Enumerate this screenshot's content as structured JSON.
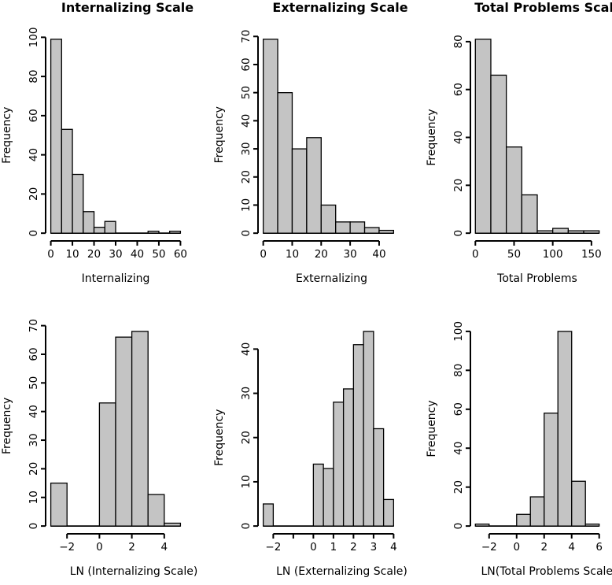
{
  "figure": {
    "kind": "r-base-histogram-grid",
    "rows": 2,
    "cols": 3,
    "background": "#ffffff",
    "bar_fill": "#c4c4c4",
    "bar_stroke": "#000000",
    "axis_color": "#000000",
    "text_color": "#000000",
    "grid": "off",
    "legend": "none"
  },
  "chart_data": [
    {
      "type": "bar",
      "subtype": "histogram",
      "title": "Internalizing Scale",
      "xlabel": "Internalizing",
      "ylabel": "Frequency",
      "bins": {
        "start": 0,
        "width": 5
      },
      "counts": [
        99,
        53,
        30,
        11,
        3,
        6,
        0,
        0,
        0,
        1,
        0,
        1
      ],
      "xlim": [
        0,
        60
      ],
      "ylim": [
        0,
        99
      ],
      "x_ticks": [
        0,
        10,
        20,
        30,
        40,
        50,
        60
      ],
      "x_tick_labels": [
        "0",
        "10",
        "20",
        "30",
        "40",
        "50",
        "60"
      ],
      "y_ticks": [
        0,
        20,
        40,
        60,
        80,
        100
      ],
      "y_tick_labels": [
        "0",
        "20",
        "40",
        "60",
        "80",
        "100"
      ]
    },
    {
      "type": "bar",
      "subtype": "histogram",
      "title": "Externalizing Scale",
      "xlabel": "Externalizing",
      "ylabel": "Frequency",
      "bins": {
        "start": 0,
        "width": 5
      },
      "counts": [
        69,
        50,
        30,
        34,
        10,
        4,
        4,
        2,
        1
      ],
      "xlim": [
        0,
        45
      ],
      "ylim": [
        0,
        69
      ],
      "x_ticks": [
        0,
        10,
        20,
        30,
        40
      ],
      "x_tick_labels": [
        "0",
        "10",
        "20",
        "30",
        "40"
      ],
      "y_ticks": [
        0,
        10,
        20,
        30,
        40,
        50,
        60,
        70
      ],
      "y_tick_labels": [
        "0",
        "10",
        "20",
        "30",
        "40",
        "50",
        "60",
        "70"
      ]
    },
    {
      "type": "bar",
      "subtype": "histogram",
      "title": "Total Problems Scale",
      "xlabel": "Total Problems",
      "ylabel": "Frequency",
      "bins": {
        "start": 0,
        "width": 20
      },
      "counts": [
        81,
        66,
        36,
        16,
        1,
        2,
        1,
        1
      ],
      "xlim": [
        0,
        160
      ],
      "ylim": [
        0,
        81
      ],
      "x_ticks": [
        0,
        50,
        100,
        150
      ],
      "x_tick_labels": [
        "0",
        "50",
        "100",
        "150"
      ],
      "y_ticks": [
        0,
        20,
        40,
        60,
        80
      ],
      "y_tick_labels": [
        "0",
        "20",
        "40",
        "60",
        "80"
      ]
    },
    {
      "type": "bar",
      "subtype": "histogram",
      "title": "",
      "xlabel": "LN (Internalizing Scale)",
      "ylabel": "Frequency",
      "bins": {
        "start": -3,
        "width": 1
      },
      "counts": [
        15,
        0,
        0,
        43,
        66,
        68,
        11,
        1
      ],
      "xlim": [
        -3,
        5
      ],
      "ylim": [
        0,
        68
      ],
      "x_ticks": [
        -2,
        0,
        2,
        4
      ],
      "x_tick_labels": [
        "−2",
        "0",
        "2",
        "4"
      ],
      "y_ticks": [
        0,
        10,
        20,
        30,
        40,
        50,
        60,
        70
      ],
      "y_tick_labels": [
        "0",
        "10",
        "20",
        "30",
        "40",
        "50",
        "60",
        "70"
      ]
    },
    {
      "type": "bar",
      "subtype": "histogram",
      "title": "",
      "xlabel": "LN (Externalizing Scale)",
      "ylabel": "Frequency",
      "bins": {
        "start": -2.5,
        "width": 0.5
      },
      "counts": [
        5,
        0,
        0,
        0,
        0,
        14,
        13,
        28,
        31,
        41,
        44,
        22,
        6
      ],
      "xlim": [
        -2.5,
        4
      ],
      "ylim": [
        0,
        44
      ],
      "x_ticks": [
        -2,
        -1,
        0,
        1,
        2,
        3,
        4
      ],
      "x_tick_labels": [
        "−2",
        "",
        "0",
        "1",
        "2",
        "3",
        "4"
      ],
      "y_ticks": [
        0,
        10,
        20,
        30,
        40
      ],
      "y_tick_labels": [
        "0",
        "10",
        "20",
        "30",
        "40"
      ]
    },
    {
      "type": "bar",
      "subtype": "histogram",
      "title": "",
      "xlabel": "LN(Total Problems Scale)",
      "ylabel": "Frequency",
      "bins": {
        "start": -3,
        "width": 1
      },
      "counts": [
        1,
        0,
        0,
        6,
        15,
        58,
        100,
        23,
        1
      ],
      "xlim": [
        -3,
        6
      ],
      "ylim": [
        0,
        100
      ],
      "x_ticks": [
        -2,
        0,
        2,
        4,
        6
      ],
      "x_tick_labels": [
        "−2",
        "0",
        "2",
        "4",
        "6"
      ],
      "y_ticks": [
        0,
        20,
        40,
        60,
        80,
        100
      ],
      "y_tick_labels": [
        "0",
        "20",
        "40",
        "60",
        "80",
        "100"
      ]
    }
  ]
}
